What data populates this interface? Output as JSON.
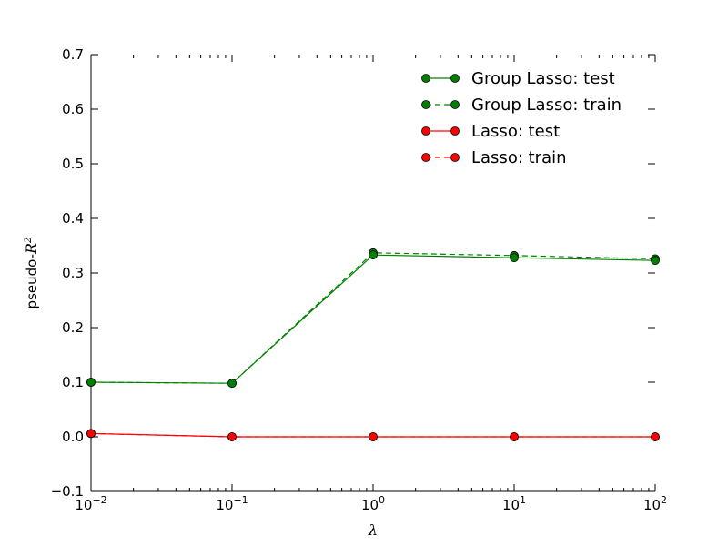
{
  "chart_data": {
    "type": "line",
    "xscale": "log",
    "xlim": [
      0.01,
      100
    ],
    "ylim": [
      -0.1,
      0.7
    ],
    "xlabel": "λ",
    "ylabel_prefix": "pseudo-",
    "ylabel_math": "R",
    "ylabel_sup": "2",
    "x_ticks": [
      {
        "value": 0.01,
        "base": "10",
        "exp": "-2"
      },
      {
        "value": 0.1,
        "base": "10",
        "exp": "-1"
      },
      {
        "value": 1,
        "base": "10",
        "exp": "0"
      },
      {
        "value": 10,
        "base": "10",
        "exp": "1"
      },
      {
        "value": 100,
        "base": "10",
        "exp": "2"
      }
    ],
    "y_ticks": [
      "0.7",
      "0.6",
      "0.5",
      "0.4",
      "0.3",
      "0.2",
      "0.1",
      "0.0",
      "−0.1"
    ],
    "y_tick_values": [
      0.7,
      0.6,
      0.5,
      0.4,
      0.3,
      0.2,
      0.1,
      0.0,
      -0.1
    ],
    "x": [
      0.01,
      0.1,
      1,
      10,
      100
    ],
    "series": [
      {
        "name": "Group Lasso: test",
        "values": [
          0.1,
          0.098,
          0.333,
          0.328,
          0.323
        ],
        "color": "#008000",
        "dash": "solid"
      },
      {
        "name": "Group Lasso: train",
        "values": [
          0.1,
          0.098,
          0.337,
          0.332,
          0.326
        ],
        "color": "#008000",
        "dash": "dashed"
      },
      {
        "name": "Lasso: test",
        "values": [
          0.006,
          0.0,
          0.0,
          0.0,
          0.0
        ],
        "color": "#ff0000",
        "dash": "solid"
      },
      {
        "name": "Lasso: train",
        "values": [
          0.006,
          0.0,
          0.0,
          0.0,
          0.0
        ],
        "color": "#ff0000",
        "dash": "dashed"
      }
    ],
    "legend_position": "top-right",
    "grid": false
  }
}
